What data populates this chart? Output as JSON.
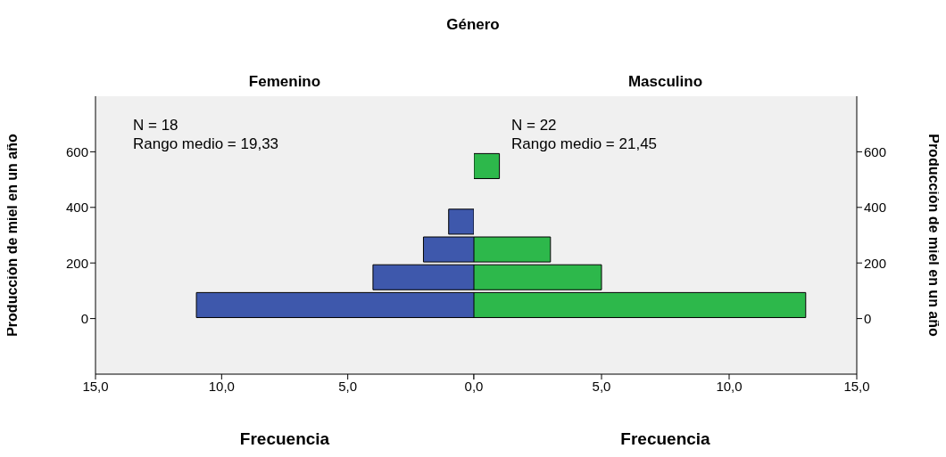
{
  "chart_data": [
    {
      "type": "histogram",
      "orientation": "horizontal",
      "title": "Género",
      "subtitle": "Femenino",
      "xlabel": "Frecuencia",
      "ylabel": "Producción de miel en un año",
      "color": "#3e58ac",
      "bins": [
        0,
        100,
        200,
        300,
        400
      ],
      "values": [
        11,
        4,
        2,
        1
      ],
      "xlim": [
        15,
        0
      ],
      "xticks": [
        {
          "value": 15,
          "label": "15,0"
        },
        {
          "value": 10,
          "label": "10,0"
        },
        {
          "value": 5,
          "label": "5,0"
        },
        {
          "value": 0,
          "label": null
        }
      ],
      "ylim": [
        -200,
        800
      ],
      "yticks": [
        0,
        200,
        400,
        600
      ],
      "annotations": [
        "N = 18",
        "Rango medio = 19,33"
      ]
    },
    {
      "type": "histogram",
      "orientation": "horizontal",
      "subtitle": "Masculino",
      "xlabel": "Frecuencia",
      "ylabel": "Producción de miel en un año",
      "color": "#2db84b",
      "bins": [
        0,
        100,
        200,
        300,
        400,
        500,
        600
      ],
      "values": [
        13,
        5,
        3,
        0,
        0,
        1
      ],
      "xlim": [
        0,
        15
      ],
      "xticks": [
        {
          "value": 0,
          "label": "0,0"
        },
        {
          "value": 5,
          "label": "5,0"
        },
        {
          "value": 10,
          "label": "10,0"
        },
        {
          "value": 15,
          "label": "15,0"
        }
      ],
      "ylim": [
        -200,
        800
      ],
      "yticks": [
        0,
        200,
        400,
        600
      ],
      "annotations": [
        "N = 22",
        "Rango medio = 21,45"
      ]
    }
  ]
}
